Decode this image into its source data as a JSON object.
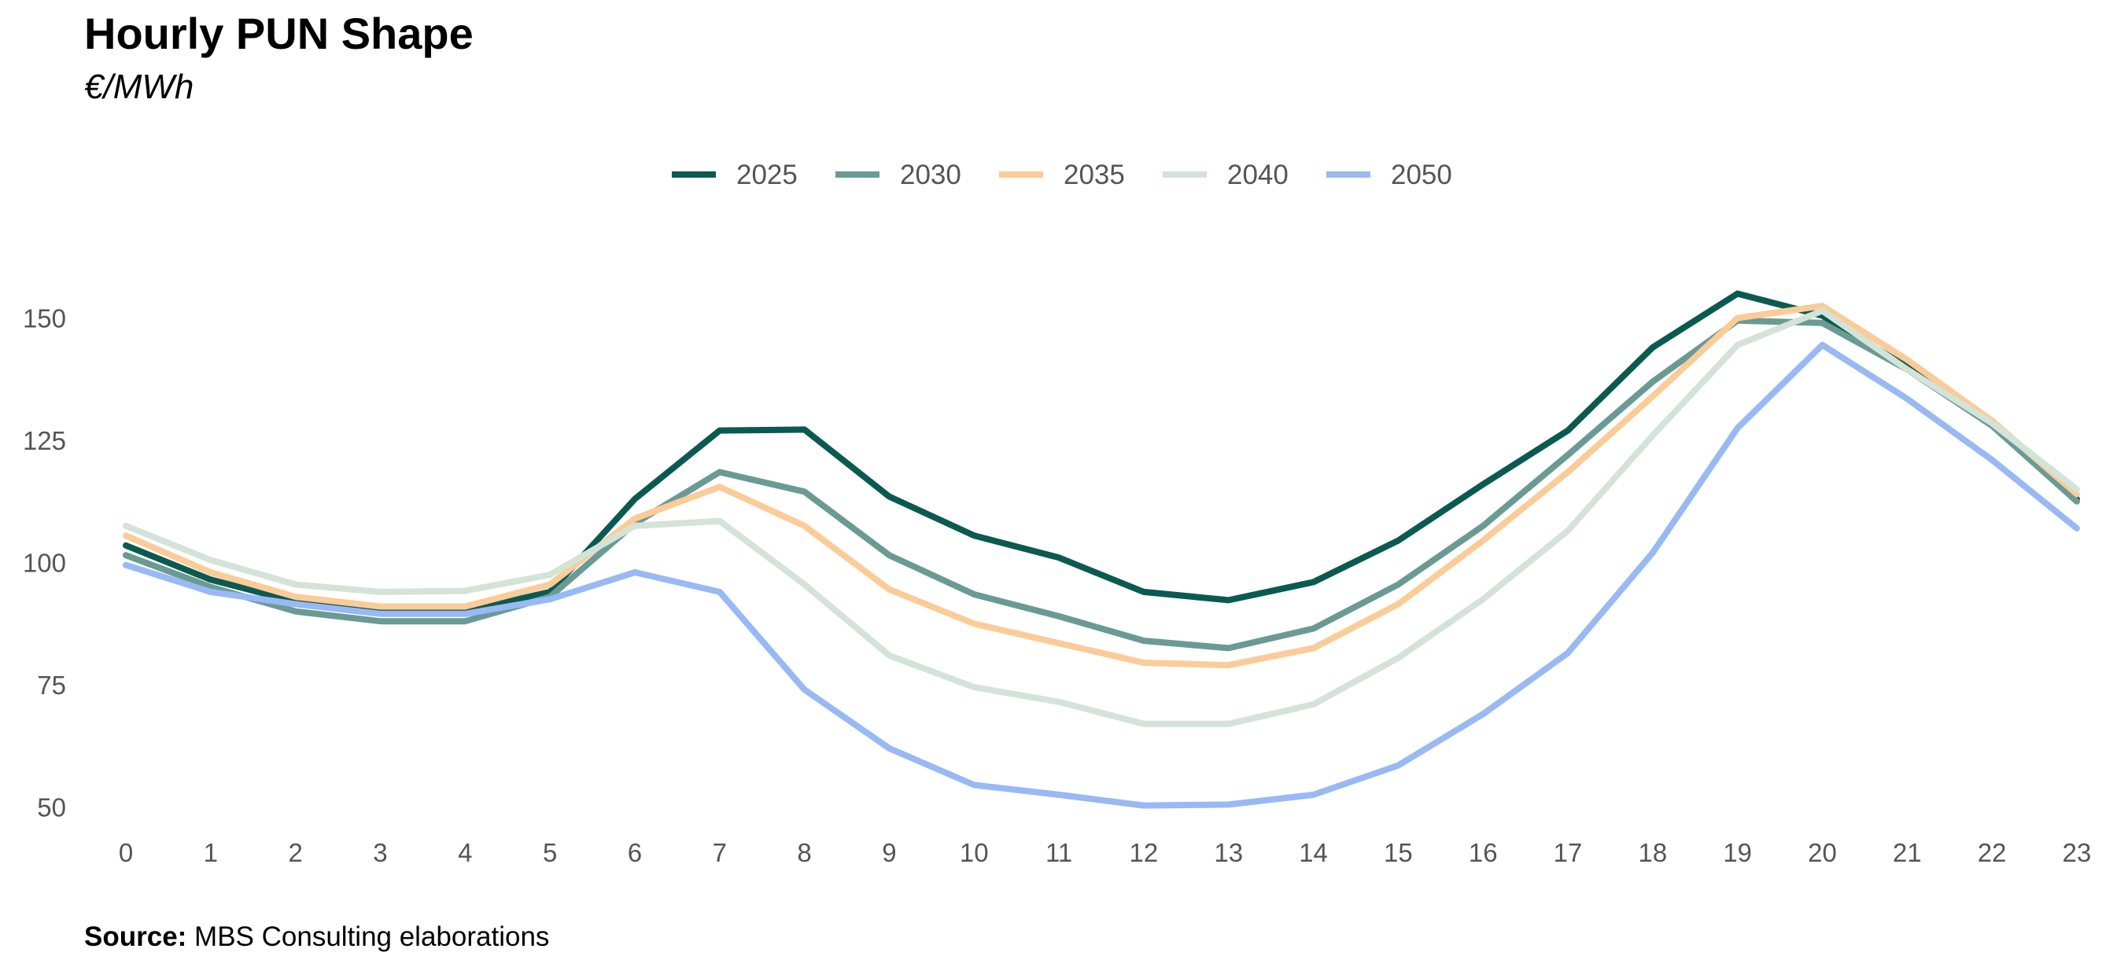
{
  "header": {
    "title": "Hourly PUN Shape",
    "subtitle": "€/MWh"
  },
  "footer": {
    "source_label": "Source:",
    "source_text": "MBS Consulting elaborations"
  },
  "chart_data": {
    "type": "line",
    "title": "Hourly PUN Shape",
    "subtitle": "€/MWh",
    "xlabel": "",
    "ylabel": "",
    "x": [
      0,
      1,
      2,
      3,
      4,
      5,
      6,
      7,
      8,
      9,
      10,
      11,
      12,
      13,
      14,
      15,
      16,
      17,
      18,
      19,
      20,
      21,
      22,
      23
    ],
    "x_tick_labels": [
      "0",
      "1",
      "2",
      "3",
      "4",
      "5",
      "6",
      "7",
      "8",
      "9",
      "10",
      "11",
      "12",
      "13",
      "14",
      "15",
      "16",
      "17",
      "18",
      "19",
      "20",
      "21",
      "22",
      "23"
    ],
    "ylim": [
      43,
      162
    ],
    "y_ticks": [
      50,
      75,
      100,
      125,
      150
    ],
    "grid": false,
    "legend_position": "top-center",
    "series": [
      {
        "name": "2025",
        "color": "#0b5a52",
        "values": [
          103.5,
          96.5,
          92,
          90,
          90,
          94,
          113,
          127,
          127.2,
          113.5,
          105.5,
          101,
          94,
          92.3,
          96,
          104.5,
          116,
          127,
          144,
          155,
          150.5,
          140,
          129,
          113
        ]
      },
      {
        "name": "2030",
        "color": "#6a9a94",
        "values": [
          101.5,
          95,
          90,
          88,
          88,
          93,
          108,
          118.5,
          114.5,
          101.5,
          93.5,
          89,
          84,
          82.5,
          86.5,
          95.5,
          107.5,
          122,
          137,
          149.5,
          149,
          139.5,
          128,
          112.5
        ]
      },
      {
        "name": "2035",
        "color": "#fbcb98",
        "values": [
          105.5,
          98,
          93,
          91,
          91,
          95.5,
          109,
          115.5,
          107.5,
          94.5,
          87.5,
          83.5,
          79.5,
          79,
          82.5,
          91.5,
          104.5,
          118.5,
          134,
          150,
          152.5,
          141.5,
          129,
          114
        ]
      },
      {
        "name": "2040",
        "color": "#d3e3d8",
        "values": [
          107.5,
          100.5,
          95.5,
          94,
          94.2,
          97.5,
          107.5,
          108.5,
          95.5,
          81,
          74.5,
          71.5,
          67,
          67,
          71,
          80.5,
          92.5,
          106.5,
          126,
          144.5,
          151.5,
          139.5,
          128.5,
          115
        ]
      },
      {
        "name": "2050",
        "color": "#98b9f4",
        "values": [
          99.5,
          94,
          91.5,
          89.5,
          89.5,
          92.5,
          98,
          94,
          74,
          62,
          54.5,
          52.5,
          50.3,
          50.5,
          52.5,
          58.5,
          69,
          81.5,
          102,
          127.5,
          144.5,
          133.5,
          121,
          107
        ]
      }
    ]
  }
}
